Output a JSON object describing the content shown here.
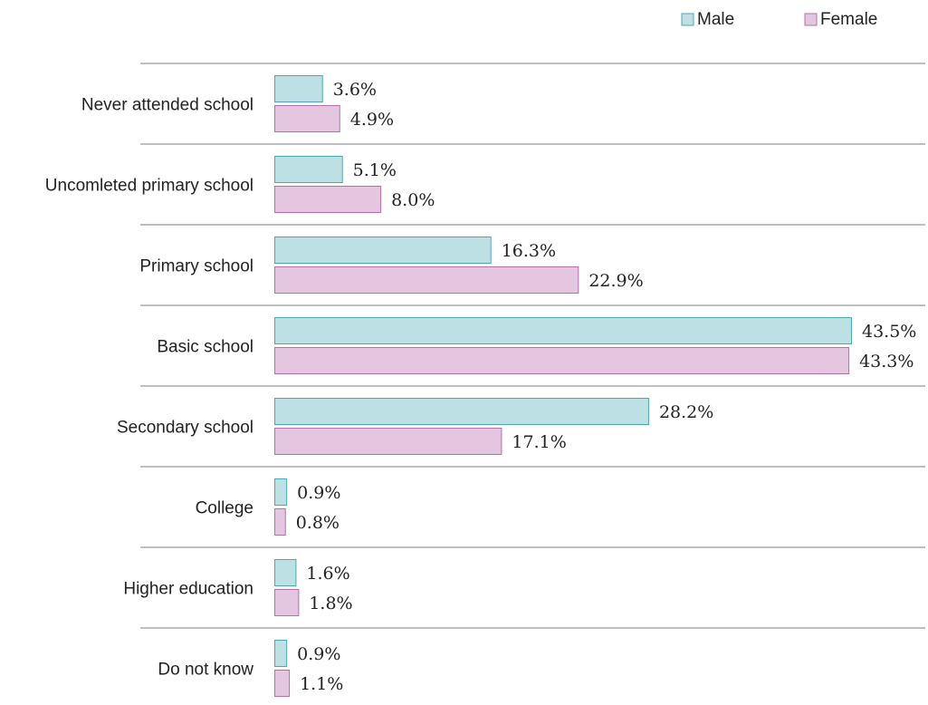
{
  "chart_data": {
    "type": "bar",
    "orientation": "horizontal",
    "categories": [
      "Never attended school",
      "Uncomleted primary school",
      "Primary school",
      "Basic school",
      "Secondary school",
      "College",
      "Higher education",
      "Do not know"
    ],
    "series": [
      {
        "name": "Male",
        "values": [
          3.6,
          5.1,
          16.3,
          43.5,
          28.2,
          0.9,
          1.6,
          0.9
        ],
        "labels": [
          "3.6%",
          "5.1%",
          "16.3%",
          "43.5%",
          "28.2%",
          "0.9%",
          "1.6%",
          "0.9%"
        ],
        "fill": "#bde0e4",
        "stroke": "#4aa9b3"
      },
      {
        "name": "Female",
        "values": [
          4.9,
          8.0,
          22.9,
          43.3,
          17.1,
          0.8,
          1.8,
          1.1
        ],
        "labels": [
          "4.9%",
          "8.0%",
          "22.9%",
          "43.3%",
          "17.1%",
          "0.8%",
          "1.8%",
          "1.1%"
        ],
        "fill": "#e4c6e0",
        "stroke": "#b570aa"
      }
    ],
    "xlim": [
      0,
      43.5
    ],
    "grid": false,
    "separators": true,
    "legend_position": "top-right",
    "separator_color": "#7f7f7f"
  }
}
